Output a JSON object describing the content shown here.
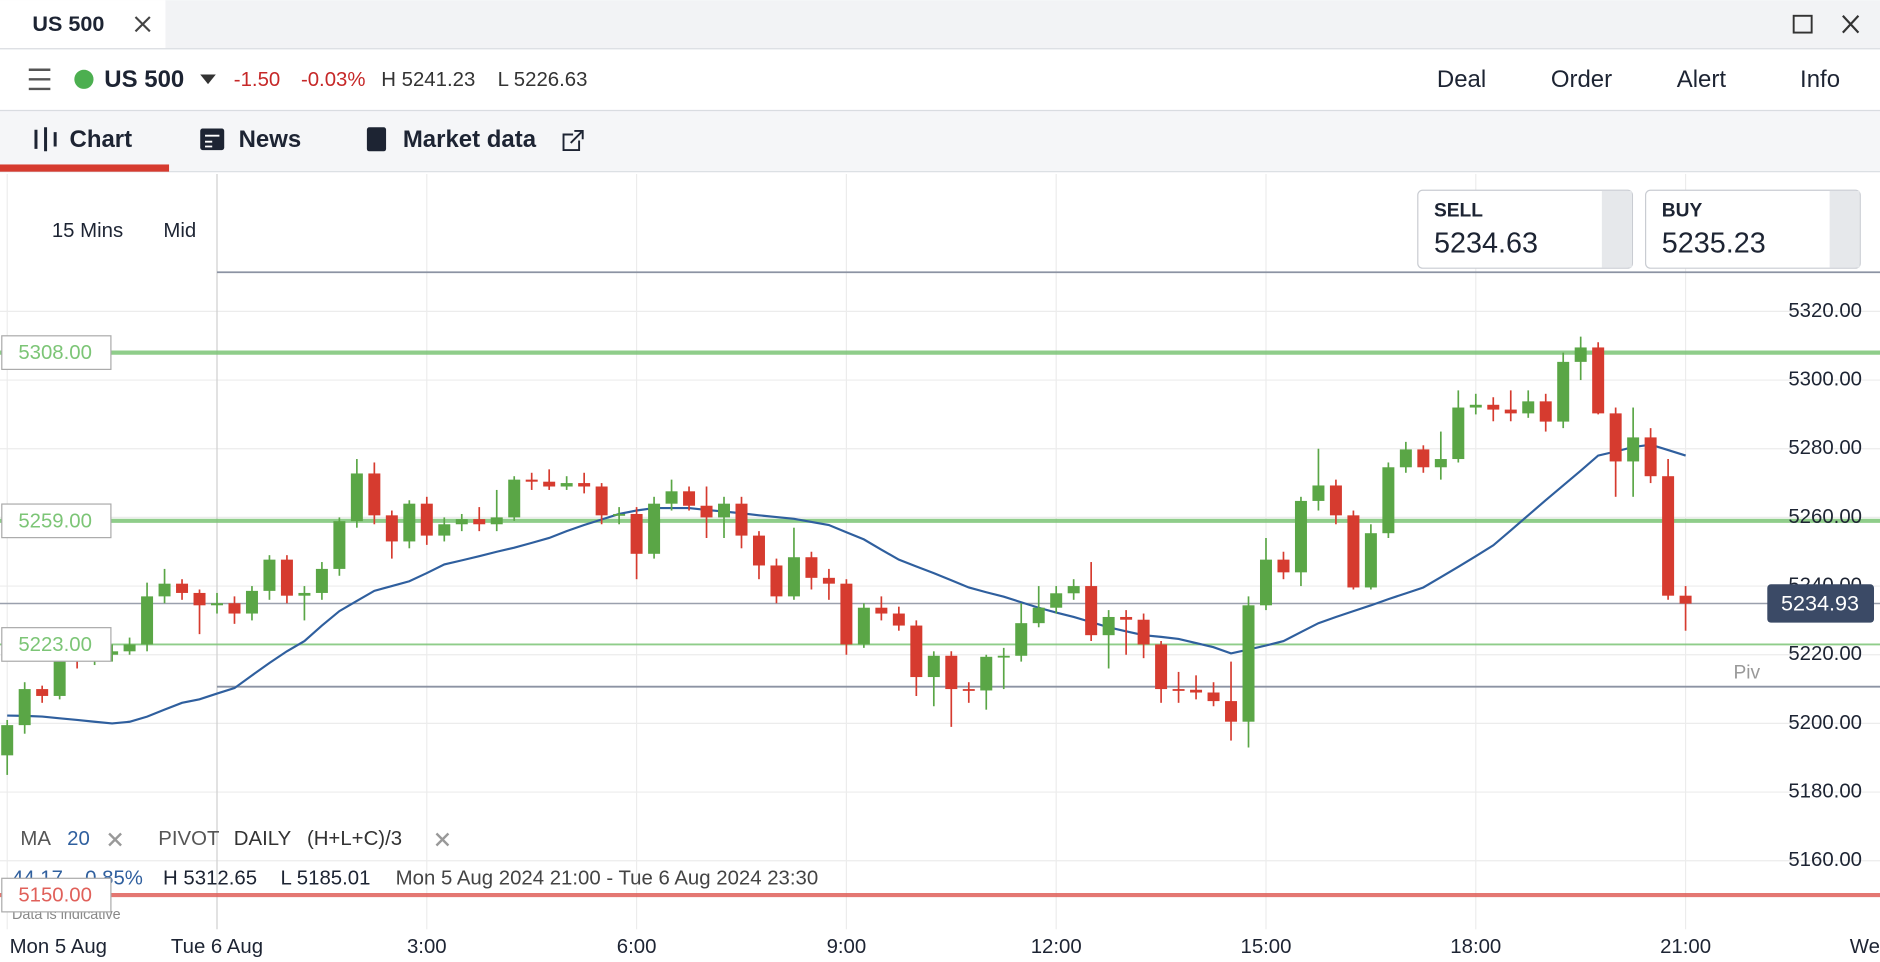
{
  "window": {
    "tab_title": "US 500"
  },
  "header": {
    "instrument": "US 500",
    "change": "-1.50",
    "change_pct": "-0.03%",
    "high": "H 5241.23",
    "low": "L 5226.63",
    "actions": [
      "Deal",
      "Order",
      "Alert",
      "Info"
    ]
  },
  "tabs": [
    "Chart",
    "News",
    "Market data"
  ],
  "toolbar": {
    "interval": "15 Mins",
    "price": "Mid"
  },
  "quote": {
    "sell_label": "SELL",
    "sell": "5234.63",
    "buy_label": "BUY",
    "buy": "5235.23"
  },
  "indicators": {
    "ma": "MA",
    "ma_period": "20",
    "pivot": "PIVOT",
    "pivot_period": "DAILY",
    "pivot_formula": "(H+L+C)/3"
  },
  "stats": {
    "change": "44.17",
    "change_pct": "0.85%",
    "high": "H 5312.65",
    "low": "L 5185.01",
    "range": "Mon 5 Aug 2024 21:00 - Tue 6 Aug 2024 23:30"
  },
  "footnote": "Data is indicative",
  "chart_data": {
    "type": "candlestick",
    "up_color": "#5aa646",
    "down_color": "#d63b2f",
    "xlim": [
      -3.103,
      23.78
    ],
    "ylim": [
      5140,
      5360
    ],
    "xticks": [
      {
        "value": -3,
        "label": "Mon 5 Aug"
      },
      {
        "value": 0,
        "label": "Tue 6 Aug"
      },
      {
        "value": 3,
        "label": "3:00"
      },
      {
        "value": 6,
        "label": "6:00"
      },
      {
        "value": 9,
        "label": "9:00"
      },
      {
        "value": 12,
        "label": "12:00"
      },
      {
        "value": 15,
        "label": "15:00"
      },
      {
        "value": 18,
        "label": "18:00"
      },
      {
        "value": 21,
        "label": "21:00"
      },
      {
        "value": 24,
        "label": "We"
      }
    ],
    "yticks": [
      {
        "value": 5160,
        "label": "5160.00"
      },
      {
        "value": 5180,
        "label": "5180.00"
      },
      {
        "value": 5200,
        "label": "5200.00"
      },
      {
        "value": 5220,
        "label": "5220.00"
      },
      {
        "value": 5240,
        "label": "5240.00"
      },
      {
        "value": 5260,
        "label": "5260.00"
      },
      {
        "value": 5280,
        "label": "5280.00"
      },
      {
        "value": 5300,
        "label": "5300.00"
      },
      {
        "value": 5320,
        "label": "5320.00"
      }
    ],
    "grid": true,
    "x": [
      -3,
      -2.75,
      -2.5,
      -2.25,
      -2,
      -1.75,
      -1.5,
      -1.25,
      -1,
      -0.75,
      -0.5,
      -0.25,
      0,
      0.25,
      0.5,
      0.75,
      1,
      1.25,
      1.5,
      1.75,
      2,
      2.25,
      2.5,
      2.75,
      3,
      3.25,
      3.5,
      3.75,
      4,
      4.25,
      4.5,
      4.75,
      5,
      5.25,
      5.5,
      5.75,
      6,
      6.25,
      6.5,
      6.75,
      7,
      7.25,
      7.5,
      7.75,
      8,
      8.25,
      8.5,
      8.75,
      9,
      9.25,
      9.5,
      9.75,
      10,
      10.25,
      10.5,
      10.75,
      11,
      11.25,
      11.5,
      11.75,
      12,
      12.25,
      12.5,
      12.75,
      13,
      13.25,
      13.5,
      13.75,
      14,
      14.25,
      14.5,
      14.75,
      15,
      15.25,
      15.5,
      15.75,
      16,
      16.25,
      16.5,
      16.75,
      17,
      17.25,
      17.5,
      17.75,
      18,
      18.25,
      18.5,
      18.75,
      19,
      19.25,
      19.5,
      19.75,
      20,
      20.25,
      20.5,
      20.75,
      21
    ],
    "open": [
      5190.7,
      5199.5,
      5210,
      5208,
      5219,
      5218.7,
      5220,
      5221,
      5223,
      5237,
      5240.7,
      5238,
      5234.4,
      5235,
      5232,
      5238.6,
      5247.7,
      5237.2,
      5238,
      5245,
      5258.9,
      5272.8,
      5260.6,
      5253,
      5264,
      5254.7,
      5258,
      5259.5,
      5258,
      5260,
      5271,
      5270.4,
      5269,
      5270,
      5269,
      5260.6,
      5261,
      5249.4,
      5264,
      5267.6,
      5263.4,
      5260,
      5264,
      5254.7,
      5246,
      5237,
      5248.4,
      5242.4,
      5240.7,
      5223,
      5233.7,
      5232,
      5228.5,
      5213.5,
      5219.7,
      5210,
      5209.6,
      5219.4,
      5219.7,
      5229.2,
      5233.7,
      5237.9,
      5240,
      5225.7,
      5231,
      5230.2,
      5223,
      5210,
      5209.8,
      5209,
      5206.5,
      5200.5,
      5234.4,
      5247.7,
      5244,
      5264.8,
      5269.3,
      5260.6,
      5239.6,
      5255.4,
      5274.6,
      5279.8,
      5274.6,
      5277,
      5292,
      5292.8,
      5291.4,
      5290.3,
      5293.8,
      5287.9,
      5305.3,
      5309.5,
      5290.3,
      5276.3,
      5283.3,
      5272,
      5237.2
    ],
    "high": [
      5201,
      5212,
      5211,
      5221,
      5221,
      5222,
      5223,
      5225,
      5241,
      5245,
      5242,
      5239,
      5238,
      5237,
      5240,
      5249,
      5249,
      5240,
      5247,
      5260,
      5277,
      5276,
      5262,
      5265,
      5266,
      5260,
      5261,
      5263,
      5268,
      5272,
      5273,
      5274,
      5272,
      5273,
      5270,
      5263,
      5263,
      5266,
      5271,
      5269,
      5269,
      5266,
      5266,
      5256,
      5248,
      5257,
      5250,
      5245,
      5242,
      5235,
      5237,
      5234,
      5230,
      5221,
      5221,
      5212,
      5220,
      5222,
      5235,
      5240,
      5240,
      5242,
      5247,
      5233,
      5233,
      5232,
      5224,
      5215,
      5214,
      5212,
      5218,
      5237,
      5254,
      5250,
      5266,
      5280,
      5271,
      5262,
      5258,
      5276,
      5282,
      5281,
      5285,
      5297,
      5296,
      5295,
      5297,
      5297,
      5296,
      5308,
      5312.65,
      5311,
      5292,
      5292,
      5286,
      5277,
      5240
    ],
    "low": [
      5185,
      5197,
      5206,
      5207,
      5216,
      5217,
      5218,
      5220,
      5221,
      5235,
      5236,
      5226,
      5232,
      5229,
      5230,
      5236,
      5235,
      5230,
      5236,
      5243,
      5257,
      5258,
      5248,
      5251,
      5252,
      5253,
      5256,
      5256,
      5256,
      5259,
      5268,
      5268,
      5268,
      5267,
      5258,
      5258,
      5242,
      5248,
      5262,
      5262,
      5254,
      5254,
      5251,
      5242,
      5235,
      5236,
      5239,
      5236,
      5220,
      5222,
      5230,
      5227,
      5208,
      5205,
      5199,
      5206,
      5204,
      5210,
      5218,
      5228,
      5232,
      5236,
      5224,
      5216,
      5220,
      5219,
      5206,
      5206,
      5207,
      5205,
      5195,
      5193,
      5233,
      5242,
      5240,
      5262,
      5258,
      5239,
      5239,
      5254,
      5273,
      5273,
      5271,
      5276,
      5290,
      5288,
      5288,
      5289,
      5285,
      5286,
      5300,
      5290,
      5266,
      5266,
      5270,
      5236,
      5227
    ],
    "close": [
      5199.5,
      5210,
      5208,
      5219,
      5218.7,
      5220,
      5221,
      5223,
      5237,
      5240.7,
      5238,
      5234.4,
      5235,
      5232,
      5238.6,
      5247.7,
      5237.2,
      5238,
      5245,
      5258.9,
      5272.8,
      5260.6,
      5253,
      5264,
      5254.7,
      5258,
      5259.5,
      5258,
      5260,
      5271,
      5270.4,
      5269,
      5270,
      5269,
      5260.6,
      5261,
      5249.4,
      5264,
      5267.6,
      5263.4,
      5260,
      5264,
      5254.7,
      5246,
      5237,
      5248.4,
      5242.4,
      5240.7,
      5223,
      5233.7,
      5232,
      5228.5,
      5213.5,
      5219.7,
      5210,
      5209.6,
      5219.4,
      5219.7,
      5229.2,
      5233.7,
      5237.9,
      5240,
      5225.7,
      5231,
      5230.2,
      5223,
      5210,
      5209.8,
      5209,
      5206.5,
      5200.5,
      5234.4,
      5247.7,
      5244,
      5264.8,
      5269.3,
      5260.6,
      5239.6,
      5255.4,
      5274.6,
      5279.8,
      5274.6,
      5277,
      5292,
      5292.8,
      5291.4,
      5290.3,
      5293.8,
      5287.9,
      5305.3,
      5309.5,
      5290.3,
      5276.3,
      5283.3,
      5272,
      5237.2,
      5234.9
    ],
    "ma": {
      "color": "#2f5f9e",
      "values": [
        5202.3,
        5202.2,
        5202,
        5201.5,
        5201,
        5200.5,
        5200,
        5200.5,
        5202,
        5204,
        5206,
        5207,
        5208.7,
        5210.3,
        5214,
        5217.6,
        5221,
        5224,
        5228.5,
        5232.7,
        5235.7,
        5238.6,
        5240,
        5241.4,
        5243.8,
        5246.3,
        5247.5,
        5248.7,
        5250,
        5251.2,
        5252.6,
        5254,
        5256,
        5257.8,
        5259.4,
        5261,
        5262,
        5262.7,
        5262.7,
        5262.7,
        5262.2,
        5261.7,
        5261.2,
        5260.6,
        5260.1,
        5259.6,
        5258.7,
        5257.8,
        5255.7,
        5253.6,
        5250.6,
        5247.7,
        5245.7,
        5243.8,
        5241.7,
        5239.6,
        5238.2,
        5236.9,
        5235.3,
        5233.7,
        5232.3,
        5231,
        5229.5,
        5228,
        5226.8,
        5225.7,
        5225.2,
        5224.6,
        5223.4,
        5222.2,
        5220.4,
        5221.5,
        5222.7,
        5224,
        5226.6,
        5229.2,
        5231,
        5232.7,
        5234.4,
        5236.2,
        5237.9,
        5239.6,
        5242.6,
        5245.6,
        5248.7,
        5251.9,
        5256.2,
        5260.6,
        5265,
        5269.3,
        5273.6,
        5278,
        5279.2,
        5280.5,
        5281.2,
        5279.6,
        5278
      ]
    },
    "levels": [
      {
        "value": 5308,
        "label": "5308.00",
        "color": "#7cc576"
      },
      {
        "value": 5259,
        "label": "5259.00",
        "color": "#7cc576"
      },
      {
        "value": 5223,
        "label": "5223.00",
        "color": "#7cc576"
      },
      {
        "value": 5150,
        "label": "5150.00",
        "color": "#e0605a"
      }
    ],
    "pivot_lines": [
      {
        "value": 5331.4
      },
      {
        "value": 5210.7,
        "label": "Piv"
      }
    ],
    "current_price": {
      "value": 5234.93,
      "label": "5234.93"
    }
  }
}
